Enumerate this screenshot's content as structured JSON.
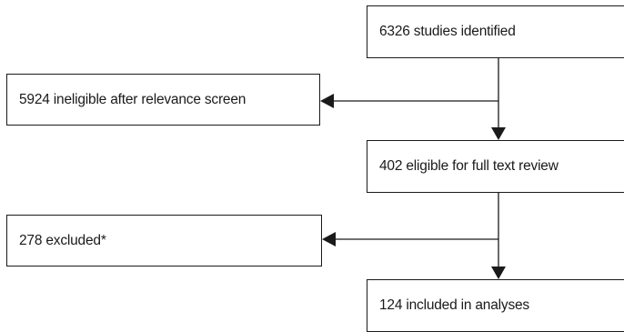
{
  "flowchart": {
    "nodes": [
      {
        "id": "identified",
        "label": "6326 studies identified"
      },
      {
        "id": "ineligible",
        "label": "5924 ineligible after relevance screen"
      },
      {
        "id": "eligible",
        "label": "402 eligible for full text review"
      },
      {
        "id": "excluded",
        "label": "278 excluded*"
      },
      {
        "id": "included",
        "label": "124 included in analyses"
      }
    ],
    "edges": [
      {
        "from": "identified",
        "to": "ineligible"
      },
      {
        "from": "identified",
        "to": "eligible"
      },
      {
        "from": "eligible",
        "to": "excluded"
      },
      {
        "from": "eligible",
        "to": "included"
      }
    ],
    "colors": {
      "line": "#1a1a1a",
      "box_fill": "#ffffff",
      "text": "#1a1a1a"
    }
  }
}
